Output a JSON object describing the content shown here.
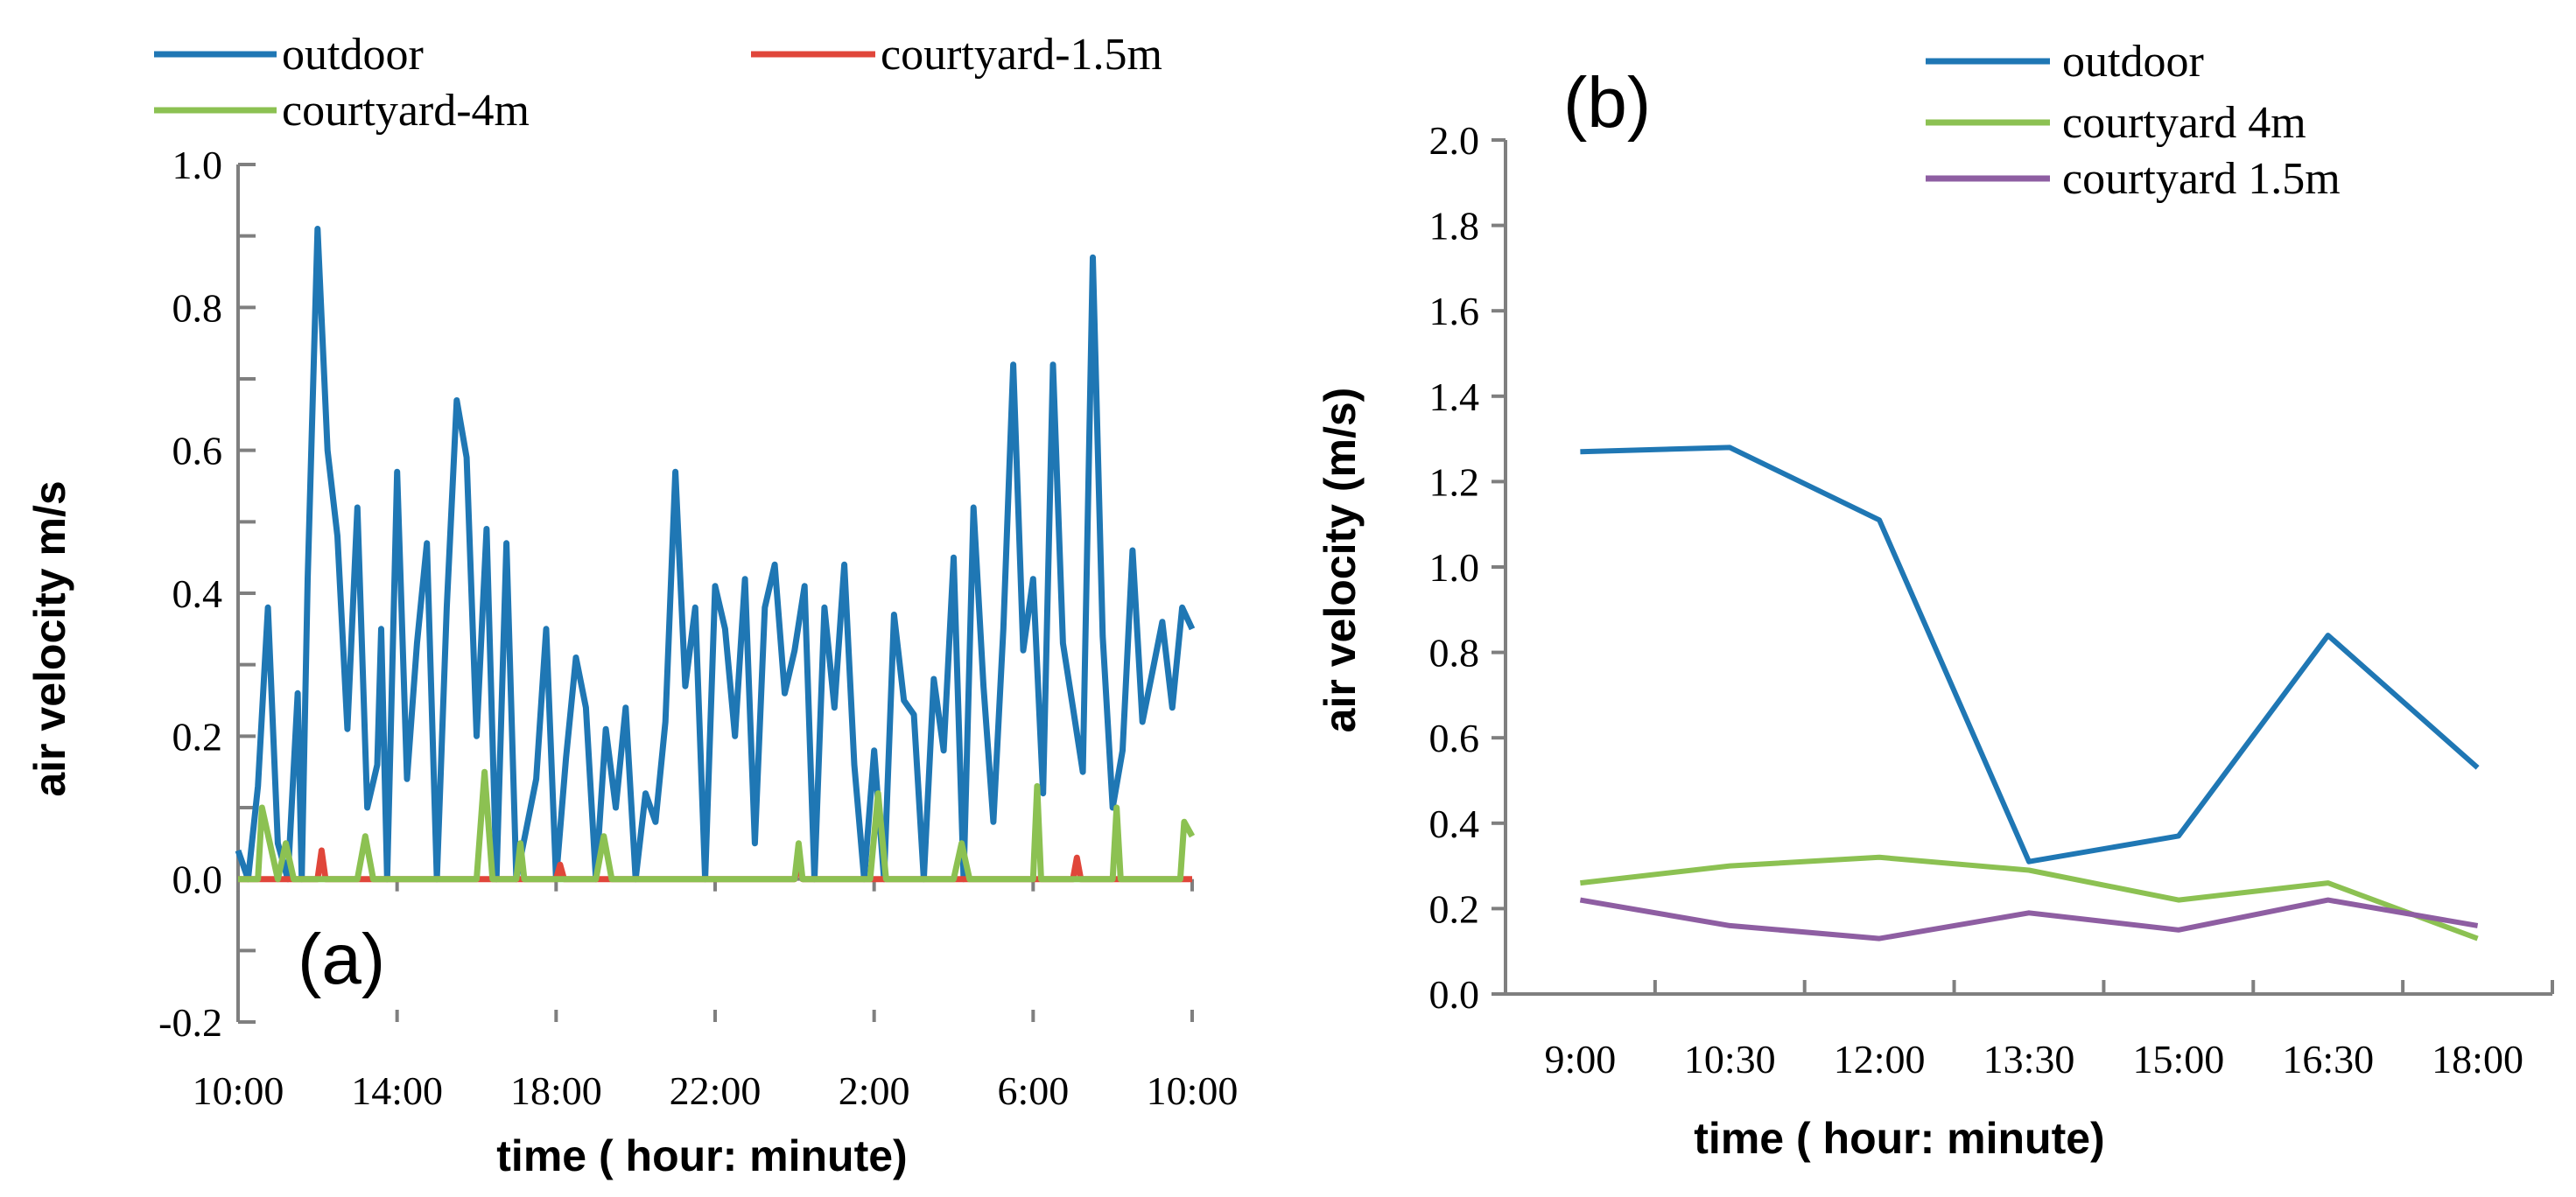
{
  "colors": {
    "outdoor": "#1f77b4",
    "courtyard_4m": "#8cc152",
    "courtyard_1_5m_a": "#e0463a",
    "courtyard_1_5m_b": "#8e5ea2",
    "axis": "#7f7f7f"
  },
  "chart_data": [
    {
      "panel": "(a)",
      "type": "line",
      "title": "",
      "xlabel": "time ( hour: minute)",
      "ylabel": "air velocity m/s",
      "ylim": [
        -0.2,
        1.0
      ],
      "yticks": [
        "1.0",
        "0.8",
        "0.6",
        "0.4",
        "0.2",
        "0.0",
        "-0.2"
      ],
      "yticks_values": [
        1.0,
        0.8,
        0.6,
        0.4,
        0.2,
        0.0,
        -0.2
      ],
      "xticks": [
        "10:00",
        "14:00",
        "18:00",
        "22:00",
        "2:00",
        "6:00",
        "10:00"
      ],
      "x_hours": [
        0,
        24
      ],
      "legend": [
        "outdoor",
        "courtyard-1.5m",
        "courtyard-4m"
      ],
      "legend_placement": "top",
      "series": [
        {
          "name": "outdoor",
          "x": [
            0,
            0.25,
            0.5,
            0.75,
            1,
            1.25,
            1.5,
            1.6,
            1.75,
            2,
            2.25,
            2.5,
            2.75,
            3,
            3.25,
            3.5,
            3.6,
            3.75,
            4,
            4.25,
            4.5,
            4.75,
            5,
            5.25,
            5.5,
            5.75,
            6,
            6.25,
            6.5,
            6.75,
            7,
            7.25,
            7.5,
            7.75,
            8,
            8.25,
            8.5,
            8.75,
            9,
            9.25,
            9.5,
            9.75,
            10,
            10.25,
            10.5,
            10.75,
            11,
            11.25,
            11.5,
            11.75,
            12,
            12.25,
            12.5,
            12.75,
            13,
            13.25,
            13.5,
            13.75,
            14,
            14.25,
            14.5,
            14.75,
            15,
            15.25,
            15.5,
            15.75,
            16,
            16.25,
            16.5,
            16.75,
            17,
            17.25,
            17.5,
            17.75,
            18,
            18.25,
            18.5,
            18.75,
            19,
            19.25,
            19.5,
            19.75,
            20,
            20.25,
            20.5,
            20.75,
            21,
            21.25,
            21.5,
            21.75,
            22,
            22.25,
            22.5,
            22.75,
            23,
            23.25,
            23.5,
            23.75,
            24
          ],
          "values": [
            0.04,
            0.0,
            0.13,
            0.38,
            0.05,
            0.0,
            0.26,
            0.0,
            0.42,
            0.91,
            0.6,
            0.48,
            0.21,
            0.52,
            0.1,
            0.16,
            0.35,
            0.0,
            0.57,
            0.14,
            0.33,
            0.47,
            0.0,
            0.38,
            0.67,
            0.59,
            0.2,
            0.49,
            0.0,
            0.47,
            0.0,
            0.07,
            0.14,
            0.35,
            0.0,
            0.17,
            0.31,
            0.24,
            0.0,
            0.21,
            0.1,
            0.24,
            0.0,
            0.12,
            0.08,
            0.22,
            0.57,
            0.27,
            0.38,
            0.0,
            0.41,
            0.35,
            0.2,
            0.42,
            0.05,
            0.38,
            0.44,
            0.26,
            0.32,
            0.41,
            0.0,
            0.38,
            0.24,
            0.44,
            0.16,
            0.0,
            0.18,
            0.0,
            0.37,
            0.25,
            0.23,
            0.0,
            0.28,
            0.18,
            0.45,
            0.0,
            0.52,
            0.27,
            0.08,
            0.35,
            0.72,
            0.32,
            0.42,
            0.12,
            0.72,
            0.33,
            0.24,
            0.15,
            0.87,
            0.34,
            0.1,
            0.18,
            0.46,
            0.22,
            0.29,
            0.36,
            0.24,
            0.38,
            0.35
          ]
        },
        {
          "name": "courtyard-1.5m",
          "x": [
            0,
            2,
            2.1,
            2.2,
            8,
            8.1,
            8.2,
            14,
            14.1,
            14.2,
            21,
            21.1,
            21.2,
            24
          ],
          "values": [
            0.0,
            0.0,
            0.04,
            0.0,
            0.0,
            0.02,
            0.0,
            0.0,
            0.02,
            0.0,
            0.0,
            0.03,
            0.0,
            0.0
          ]
        },
        {
          "name": "courtyard-4m",
          "x": [
            0,
            0.5,
            0.6,
            1,
            1.2,
            1.4,
            3,
            3.2,
            3.4,
            6,
            6.2,
            6.4,
            7,
            7.1,
            7.2,
            9,
            9.2,
            9.4,
            14,
            14.1,
            14.2,
            15.9,
            16.1,
            16.3,
            18,
            18.2,
            18.4,
            20,
            20.1,
            20.2,
            22,
            22.1,
            22.2,
            23.7,
            23.8,
            24
          ],
          "values": [
            0.0,
            0.0,
            0.1,
            0.0,
            0.05,
            0.0,
            0.0,
            0.06,
            0.0,
            0.0,
            0.15,
            0.0,
            0.0,
            0.05,
            0.0,
            0.0,
            0.06,
            0.0,
            0.0,
            0.05,
            0.0,
            0.0,
            0.12,
            0.0,
            0.0,
            0.05,
            0.0,
            0.0,
            0.13,
            0.0,
            0.0,
            0.1,
            0.0,
            0.0,
            0.08,
            0.06
          ]
        }
      ]
    },
    {
      "panel": "(b)",
      "type": "line",
      "title": "",
      "xlabel": "time ( hour: minute)",
      "ylabel": "air velocity  (m/s)",
      "ylim": [
        0.0,
        2.0
      ],
      "yticks": [
        "2.0",
        "1.8",
        "1.6",
        "1.4",
        "1.2",
        "1.0",
        "0.8",
        "0.6",
        "0.4",
        "0.2",
        "0.0"
      ],
      "yticks_values": [
        2.0,
        1.8,
        1.6,
        1.4,
        1.2,
        1.0,
        0.8,
        0.6,
        0.4,
        0.2,
        0.0
      ],
      "categories": [
        "9:00",
        "10:30",
        "12:00",
        "13:30",
        "15:00",
        "16:30",
        "18:00"
      ],
      "legend": [
        "outdoor",
        "courtyard 4m",
        "courtyard 1.5m"
      ],
      "legend_placement": "top-right",
      "series": [
        {
          "name": "outdoor",
          "values": [
            1.27,
            1.28,
            1.11,
            0.31,
            0.37,
            0.84,
            0.53
          ]
        },
        {
          "name": "courtyard 4m",
          "values": [
            0.26,
            0.3,
            0.32,
            0.29,
            0.22,
            0.26,
            0.13
          ]
        },
        {
          "name": "courtyard 1.5m",
          "values": [
            0.22,
            0.16,
            0.13,
            0.19,
            0.15,
            0.22,
            0.16
          ]
        }
      ]
    }
  ]
}
